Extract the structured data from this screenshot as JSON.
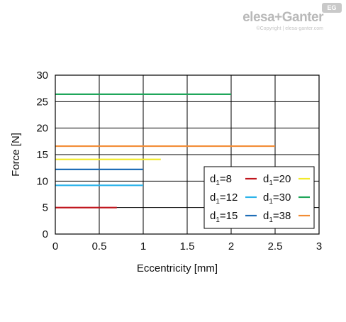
{
  "brand": {
    "name": "elesa+Ganter",
    "copyright": "©Copyright | elesa-ganter.com",
    "badge": "EG"
  },
  "chart_data": {
    "type": "line",
    "title": "",
    "xlabel": "Eccentricity [mm]",
    "ylabel": "Force [N]",
    "xlim": [
      0,
      3
    ],
    "ylim": [
      0,
      30
    ],
    "x_ticks": [
      "0",
      "0.5",
      "1",
      "1.5",
      "2",
      "2.5",
      "3"
    ],
    "y_ticks": [
      "0",
      "5",
      "10",
      "15",
      "20",
      "25",
      "30"
    ],
    "grid": true,
    "legend_position": "bottom-right",
    "series": [
      {
        "name": "d1=8",
        "label_main": "d",
        "label_sub": "1",
        "label_rest": "=8",
        "color": "#c0161e",
        "x": [
          0,
          0.7
        ],
        "y": [
          5,
          5
        ]
      },
      {
        "name": "d1=12",
        "label_main": "d",
        "label_sub": "1",
        "label_rest": "=12",
        "color": "#2bb3ea",
        "x": [
          0,
          1
        ],
        "y": [
          9.2,
          9.2
        ]
      },
      {
        "name": "d1=15",
        "label_main": "d",
        "label_sub": "1",
        "label_rest": "=15",
        "color": "#1f6eb7",
        "x": [
          0,
          1
        ],
        "y": [
          12.2,
          12.2
        ]
      },
      {
        "name": "d1=20",
        "label_main": "d",
        "label_sub": "1",
        "label_rest": "=20",
        "color": "#f2ea2a",
        "x": [
          0,
          1.2
        ],
        "y": [
          14.1,
          14.1
        ]
      },
      {
        "name": "d1=30",
        "label_main": "d",
        "label_sub": "1",
        "label_rest": "=30",
        "color": "#1fa65a",
        "x": [
          0,
          2
        ],
        "y": [
          26.4,
          26.4
        ]
      },
      {
        "name": "d1=38",
        "label_main": "d",
        "label_sub": "1",
        "label_rest": "=38",
        "color": "#f28c35",
        "x": [
          0,
          2.5
        ],
        "y": [
          16.6,
          16.6
        ]
      }
    ]
  }
}
